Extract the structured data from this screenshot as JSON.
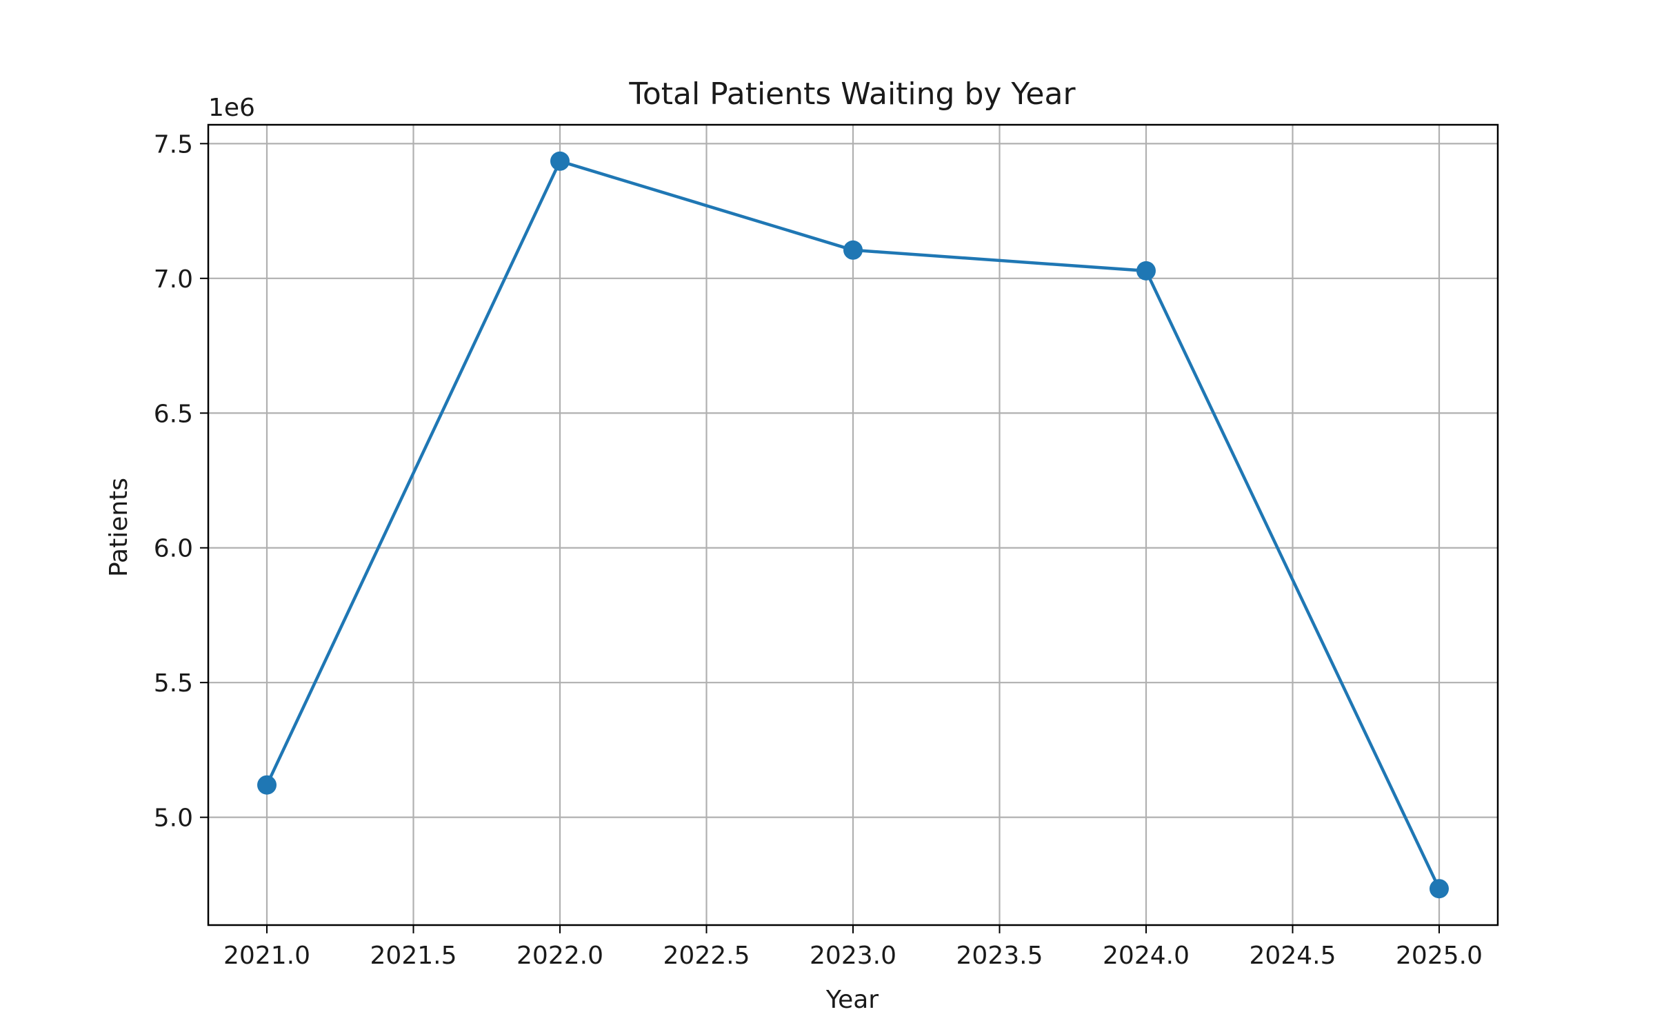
{
  "chart_data": {
    "type": "line",
    "title": "Total Patients Waiting by Year",
    "xlabel": "Year",
    "ylabel": "Patients",
    "y_offset_label": "1e6",
    "x": [
      2021.0,
      2022.0,
      2023.0,
      2024.0,
      2025.0
    ],
    "series": [
      {
        "values": [
          5120000,
          7435000,
          7105000,
          7028000,
          4735000
        ],
        "color": "#1f77b4"
      }
    ],
    "xlim": [
      2020.8,
      2025.2
    ],
    "ylim": [
      4600000,
      7570000
    ],
    "x_ticks": [
      2021.0,
      2021.5,
      2022.0,
      2022.5,
      2023.0,
      2023.5,
      2024.0,
      2024.5,
      2025.0
    ],
    "x_tick_labels": [
      "2021.0",
      "2021.5",
      "2022.0",
      "2022.5",
      "2023.0",
      "2023.5",
      "2024.0",
      "2024.5",
      "2025.0"
    ],
    "y_ticks": [
      5000000,
      5500000,
      6000000,
      6500000,
      7000000,
      7500000
    ],
    "y_tick_labels": [
      "5.0",
      "5.5",
      "6.0",
      "6.5",
      "7.0",
      "7.5"
    ],
    "grid": true,
    "legend": false,
    "colors": {
      "line": "#1f77b4",
      "grid": "#b0b0b0",
      "axes": "#000000"
    }
  }
}
